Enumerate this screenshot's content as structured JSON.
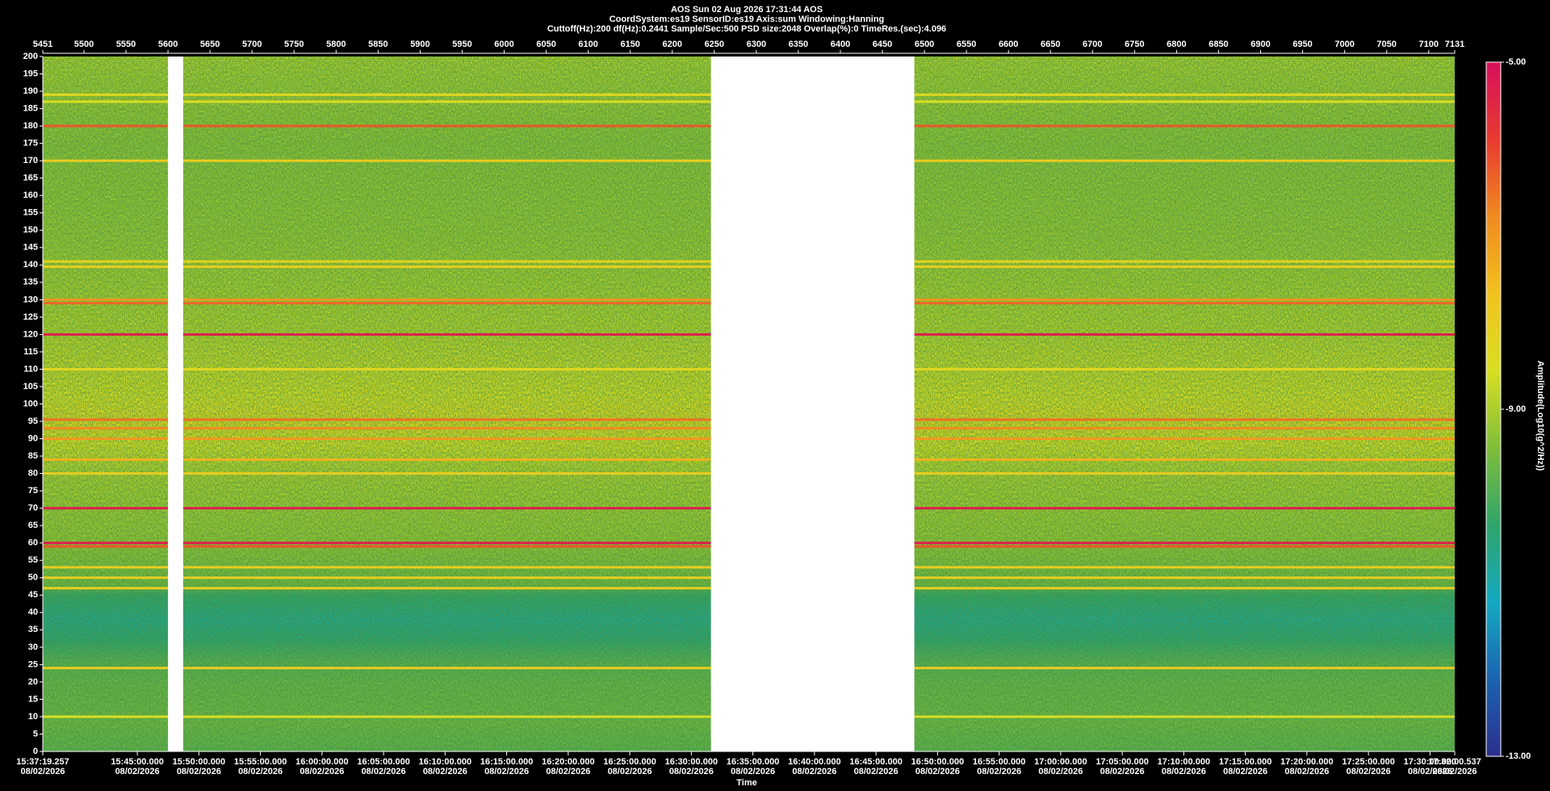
{
  "chart_data": {
    "type": "spectrogram",
    "title": "AOS  Sun 02 Aug 2026 17:31:44  AOS",
    "subtitle": [
      "CoordSystem:es19   SensorID:es19   Axis:sum   Windowing:Hanning",
      "Cuttoff(Hz):200      df(Hz):0.2441      Sample/Sec:500      PSD size:2048      Overlap(%):0      TimeRes.(sec):4.096"
    ],
    "xlabel": "Time",
    "colorbar_label": "Amplitude(Log10(g^2/Hz))",
    "xlim": [
      5451,
      7131
    ],
    "xticks": [
      5451,
      5500,
      5550,
      5600,
      5650,
      5700,
      5750,
      5800,
      5850,
      5900,
      5950,
      6000,
      6050,
      6100,
      6150,
      6200,
      6250,
      6300,
      6350,
      6400,
      6450,
      6500,
      6550,
      6600,
      6650,
      6700,
      6750,
      6800,
      6850,
      6900,
      6950,
      7000,
      7050,
      7100,
      7131
    ],
    "x2lim": [
      56239.257,
      63120.537
    ],
    "x2ticks": [
      {
        "value": 56239.257,
        "label": "15:37:19.257",
        "date": "08/02/2026"
      },
      {
        "value": 56700,
        "label": "15:45:00.000",
        "date": "08/02/2026"
      },
      {
        "value": 57000,
        "label": "15:50:00.000",
        "date": "08/02/2026"
      },
      {
        "value": 57300,
        "label": "15:55:00.000",
        "date": "08/02/2026"
      },
      {
        "value": 57600,
        "label": "16:00:00.000",
        "date": "08/02/2026"
      },
      {
        "value": 57900,
        "label": "16:05:00.000",
        "date": "08/02/2026"
      },
      {
        "value": 58200,
        "label": "16:10:00.000",
        "date": "08/02/2026"
      },
      {
        "value": 58500,
        "label": "16:15:00.000",
        "date": "08/02/2026"
      },
      {
        "value": 58800,
        "label": "16:20:00.000",
        "date": "08/02/2026"
      },
      {
        "value": 59100,
        "label": "16:25:00.000",
        "date": "08/02/2026"
      },
      {
        "value": 59400,
        "label": "16:30:00.000",
        "date": "08/02/2026"
      },
      {
        "value": 59700,
        "label": "16:35:00.000",
        "date": "08/02/2026"
      },
      {
        "value": 60000,
        "label": "16:40:00.000",
        "date": "08/02/2026"
      },
      {
        "value": 60300,
        "label": "16:45:00.000",
        "date": "08/02/2026"
      },
      {
        "value": 60600,
        "label": "16:50:00.000",
        "date": "08/02/2026"
      },
      {
        "value": 60900,
        "label": "16:55:00.000",
        "date": "08/02/2026"
      },
      {
        "value": 61200,
        "label": "17:00:00.000",
        "date": "08/02/2026"
      },
      {
        "value": 61500,
        "label": "17:05:00.000",
        "date": "08/02/2026"
      },
      {
        "value": 61800,
        "label": "17:10:00.000",
        "date": "08/02/2026"
      },
      {
        "value": 62100,
        "label": "17:15:00.000",
        "date": "08/02/2026"
      },
      {
        "value": 62400,
        "label": "17:20:00.000",
        "date": "08/02/2026"
      },
      {
        "value": 62700,
        "label": "17:25:00.000",
        "date": "08/02/2026"
      },
      {
        "value": 63000,
        "label": "17:30:00.000",
        "date": "08/02/2026"
      },
      {
        "value": 63120.537,
        "label": "17:32:00.537",
        "date": "08/02/2026"
      }
    ],
    "ylim": [
      0,
      200
    ],
    "yticks": [
      0,
      5,
      10,
      15,
      20,
      25,
      30,
      35,
      40,
      45,
      50,
      55,
      60,
      65,
      70,
      75,
      80,
      85,
      90,
      95,
      100,
      105,
      110,
      115,
      120,
      125,
      130,
      135,
      140,
      145,
      150,
      155,
      160,
      165,
      170,
      175,
      180,
      185,
      190,
      195,
      200
    ],
    "clim": [
      -13,
      -5
    ],
    "cticks": [
      {
        "value": -5,
        "label": "-5.00"
      },
      {
        "value": -9,
        "label": "-9.00"
      },
      {
        "value": -13,
        "label": "-13.00"
      }
    ],
    "colormap": [
      "#2b2f8c",
      "#1b64b0",
      "#14a9c2",
      "#2fa56a",
      "#7fbe3a",
      "#d8df22",
      "#f2c21e",
      "#f08a20",
      "#e83a30",
      "#d8105c"
    ],
    "noise_floor": {
      "freq": [
        0,
        8,
        20,
        26,
        32,
        38,
        45,
        48,
        60,
        80,
        88,
        95,
        102,
        120,
        150,
        175,
        200
      ],
      "level": [
        -9.8,
        -9.6,
        -9.7,
        -9.9,
        -10.4,
        -10.7,
        -10.3,
        -9.6,
        -9.2,
        -9.0,
        -8.6,
        -8.3,
        -8.6,
        -8.9,
        -9.2,
        -9.3,
        -9.0
      ]
    },
    "tones": [
      {
        "freq": 189,
        "level": -8.3
      },
      {
        "freq": 187,
        "level": -8.5
      },
      {
        "freq": 180,
        "level": -6.2
      },
      {
        "freq": 170,
        "level": -8.0
      },
      {
        "freq": 141,
        "level": -8.2
      },
      {
        "freq": 139.5,
        "level": -8.0
      },
      {
        "freq": 130,
        "level": -7.0
      },
      {
        "freq": 129,
        "level": -6.4
      },
      {
        "freq": 120,
        "level": -5.3
      },
      {
        "freq": 110,
        "level": -8.3
      },
      {
        "freq": 95.5,
        "level": -6.5
      },
      {
        "freq": 93,
        "level": -6.8
      },
      {
        "freq": 90,
        "level": -7.0
      },
      {
        "freq": 84,
        "level": -7.4
      },
      {
        "freq": 80,
        "level": -8.0
      },
      {
        "freq": 70,
        "level": -5.3
      },
      {
        "freq": 60,
        "level": -5.3
      },
      {
        "freq": 59,
        "level": -6.2
      },
      {
        "freq": 53,
        "level": -8.0
      },
      {
        "freq": 50,
        "level": -8.0
      },
      {
        "freq": 47,
        "level": -8.0
      },
      {
        "freq": 24,
        "level": -8.0
      },
      {
        "freq": 10,
        "level": -8.5
      }
    ],
    "gaps": [
      [
        5600,
        5618
      ],
      [
        6246,
        6488
      ]
    ]
  }
}
